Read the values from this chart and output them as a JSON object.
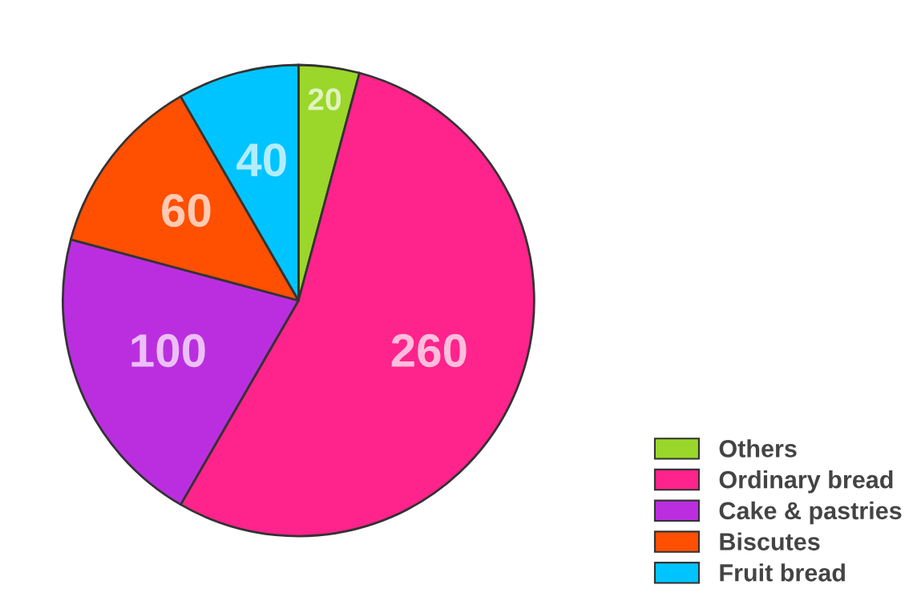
{
  "chart_data": {
    "type": "pie",
    "categories": [
      "Others",
      "Ordinary bread",
      "Cake & pastries",
      "Biscutes",
      "Fruit bread"
    ],
    "values": [
      20,
      260,
      100,
      60,
      40
    ],
    "colors": [
      "#9ad72a",
      "#ff238c",
      "#bb2ee0",
      "#ff4f00",
      "#00c4ff"
    ],
    "data_labels": true,
    "legend": "bottom right"
  }
}
